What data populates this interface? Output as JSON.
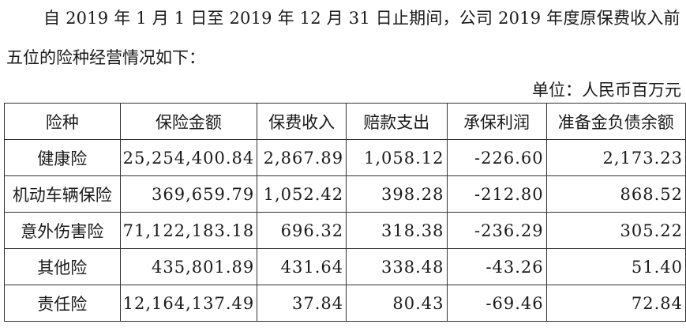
{
  "intro": {
    "line1": "自 2019 年 1 月 1 日至 2019 年 12 月 31 日止期间，公司 2019 年度原保费收入前",
    "line2": "五位的险种经营情况如下："
  },
  "unit_label": "单位：人民币百万元",
  "table": {
    "headers": [
      "险种",
      "保险金额",
      "保费收入",
      "赔款支出",
      "承保利润",
      "准备金负债余额"
    ],
    "rows": [
      [
        "健康险",
        "25,254,400.84",
        "2,867.89",
        "1,058.12",
        "-226.60",
        "2,173.23"
      ],
      [
        "机动车辆保险",
        "369,659.79",
        "1,052.42",
        "398.28",
        "-212.80",
        "868.52"
      ],
      [
        "意外伤害险",
        "71,122,183.18",
        "696.32",
        "318.38",
        "-236.29",
        "305.22"
      ],
      [
        "其他险",
        "435,801.89",
        "431.64",
        "338.48",
        "-43.26",
        "51.40"
      ],
      [
        "责任险",
        "12,164,137.49",
        "37.84",
        "80.43",
        "-69.46",
        "72.84"
      ]
    ]
  }
}
